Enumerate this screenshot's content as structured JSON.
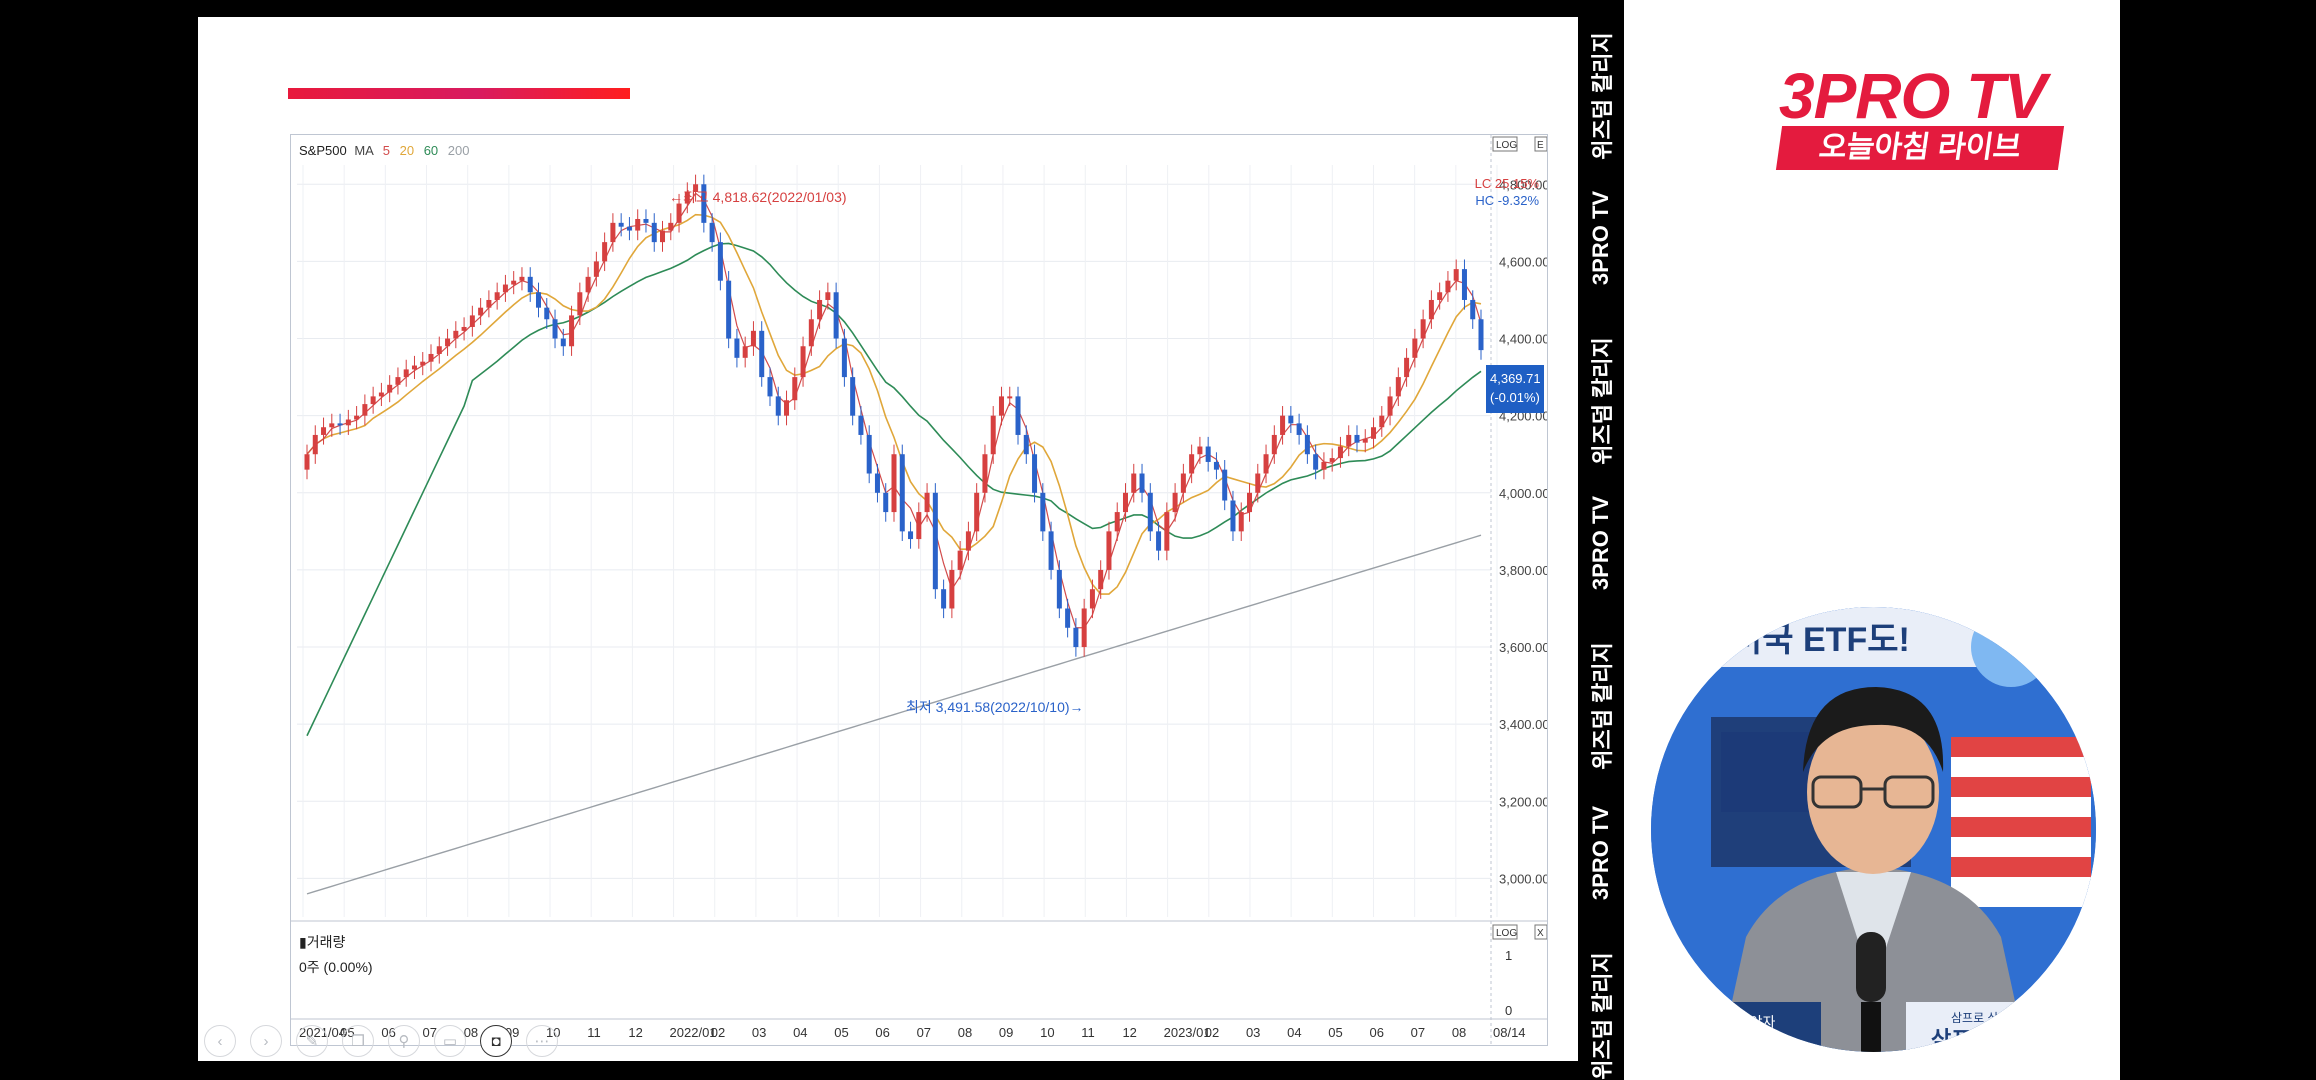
{
  "slide": {
    "chart": {
      "symbol": "S&P500",
      "ma_label": "MA",
      "ma_periods": [
        "5",
        "20",
        "60",
        "200"
      ],
      "lc_label": "LC  25.15%",
      "hc_label": "HC  -9.32%",
      "price_tag_value": "4,369.71",
      "price_tag_change": "(-0.01%)",
      "high_annotation": "←최고  4,818.62(2022/01/03)",
      "low_annotation": "최저  3,491.58(2022/10/10)→",
      "volume_label": "▮거래량",
      "volume_value": "0주  (0.00%)",
      "volume_ticks": [
        "1",
        "0"
      ],
      "top_icons": [
        "LOG",
        "E"
      ],
      "volume_icons": [
        "LOG",
        "X"
      ]
    },
    "chart_data": {
      "type": "candlestick",
      "title": "",
      "y_ticks": [
        "4,800.00",
        "4,600.00",
        "4,400.00",
        "4,200.00",
        "4,000.00",
        "3,800.00",
        "3,600.00",
        "3,400.00",
        "3,200.00",
        "3,000.00"
      ],
      "y_range": [
        2900,
        4850
      ],
      "x_ticks": [
        "2021/04",
        "05",
        "06",
        "07",
        "08",
        "09",
        "10",
        "11",
        "12",
        "2022/01",
        "02",
        "03",
        "04",
        "05",
        "06",
        "07",
        "08",
        "09",
        "10",
        "11",
        "12",
        "2023/01",
        "02",
        "03",
        "04",
        "05",
        "06",
        "07",
        "08",
        "08/14"
      ],
      "close": [
        4100,
        4150,
        4170,
        4180,
        4175,
        4190,
        4200,
        4230,
        4250,
        4260,
        4280,
        4300,
        4320,
        4330,
        4340,
        4360,
        4380,
        4400,
        4420,
        4430,
        4460,
        4480,
        4500,
        4520,
        4540,
        4550,
        4560,
        4520,
        4480,
        4450,
        4400,
        4380,
        4460,
        4520,
        4560,
        4600,
        4650,
        4700,
        4690,
        4680,
        4710,
        4700,
        4650,
        4680,
        4700,
        4750,
        4780,
        4800,
        4700,
        4650,
        4550,
        4400,
        4350,
        4380,
        4420,
        4300,
        4250,
        4200,
        4240,
        4300,
        4380,
        4450,
        4500,
        4520,
        4400,
        4300,
        4200,
        4150,
        4050,
        4000,
        3950,
        4100,
        3900,
        3880,
        3950,
        4000,
        3750,
        3700,
        3800,
        3850,
        3900,
        4000,
        4100,
        4200,
        4250,
        4250,
        4150,
        4100,
        4000,
        3900,
        3800,
        3700,
        3650,
        3600,
        3700,
        3750,
        3800,
        3900,
        3950,
        4000,
        4050,
        4000,
        3900,
        3850,
        3950,
        4000,
        4050,
        4100,
        4120,
        4080,
        4060,
        3980,
        3900,
        3950,
        4000,
        4050,
        4100,
        4150,
        4200,
        4180,
        4150,
        4100,
        4060,
        4080,
        4090,
        4120,
        4150,
        4130,
        4140,
        4170,
        4200,
        4250,
        4300,
        4350,
        4400,
        4450,
        4500,
        4520,
        4550,
        4580,
        4500,
        4450,
        4370
      ],
      "ma20_visible": true,
      "ma60_visible": true,
      "ma200_visible": true
    },
    "toolbar": {
      "buttons": [
        "back-icon",
        "play-icon",
        "pen-icon",
        "copy-icon",
        "search-icon",
        "grid-icon",
        "video-icon",
        "more-icon"
      ]
    }
  },
  "strip": {
    "items": [
      "위즈덤 칼리지",
      "3PRO TV",
      "위즈덤 칼리지",
      "3PRO TV",
      "위즈덤 칼리지",
      "3PRO TV",
      "위즈덤 칼리지"
    ]
  },
  "brand": {
    "name": "3PRO TV",
    "subtitle": "오늘아침 라이브"
  },
  "video": {
    "banner_text": "미국 ETF도!",
    "desk_label_left": "코코넛야자",
    "desk_label_right": "삼프로 삼프",
    "desk_label_right2": "삼프로"
  },
  "colors": {
    "brand_red": "#e41b3e",
    "candle_up": "#d64040",
    "candle_down": "#2a62c9",
    "ma5": "#d24b4b",
    "ma20": "#e0a73a",
    "ma60": "#2e8b57",
    "ma200": "#9aa0a6"
  }
}
